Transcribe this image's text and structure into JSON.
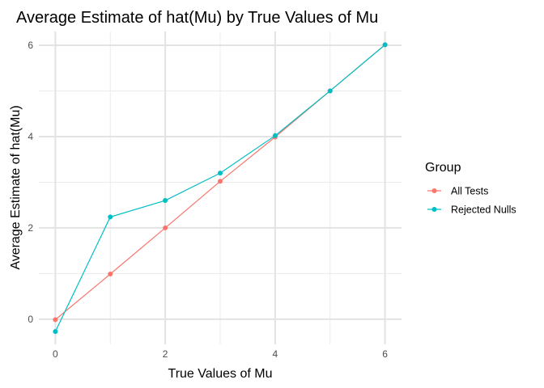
{
  "chart_data": {
    "type": "line",
    "title": "Average Estimate of hat(Mu) by True Values of Mu",
    "xlabel": "True Values of Mu",
    "ylabel": "Average Estimate of hat(Mu)",
    "x": [
      0,
      1,
      2,
      3,
      4,
      5,
      6
    ],
    "xticks": [
      0,
      2,
      4,
      6
    ],
    "yticks": [
      0,
      2,
      4,
      6
    ],
    "xlim": [
      -0.3,
      6.3
    ],
    "ylim": [
      -0.55,
      6.3
    ],
    "grid": true,
    "legend": {
      "title": "Group",
      "position": "right"
    },
    "series": [
      {
        "name": "All Tests",
        "color": "#F8766D",
        "values": [
          -0.01,
          0.99,
          2.0,
          3.02,
          3.99,
          5.0,
          6.01
        ]
      },
      {
        "name": "Rejected Nulls",
        "color": "#00BFC4",
        "values": [
          -0.27,
          2.24,
          2.6,
          3.2,
          4.02,
          5.0,
          6.01
        ]
      }
    ]
  }
}
